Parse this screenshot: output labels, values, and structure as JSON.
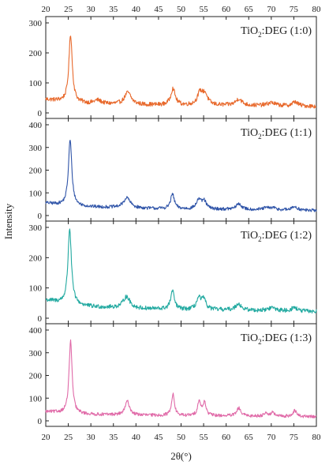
{
  "chart_data": {
    "type": "line",
    "xlabel": "2θ(°)",
    "ylabel": "Intensity",
    "xlim": [
      20,
      80
    ],
    "x_ticks": [
      20,
      25,
      30,
      35,
      40,
      45,
      50,
      55,
      60,
      65,
      70,
      75,
      80
    ],
    "grid": false,
    "layout": "four stacked panels sharing the x axis; x tick labels on top and bottom",
    "noise_amplitude_counts": 7,
    "panels": [
      {
        "label_prefix": "TiO",
        "label_subscript": "2",
        "label_suffix": ":DEG (1:0)",
        "color": "#e8692c",
        "ylim": [
          0,
          300
        ],
        "y_ticks": [
          0,
          100,
          200,
          300
        ],
        "baseline": [
          [
            20,
            45
          ],
          [
            24,
            38
          ],
          [
            30,
            30
          ],
          [
            40,
            27
          ],
          [
            50,
            25
          ],
          [
            60,
            25
          ],
          [
            70,
            24
          ],
          [
            80,
            22
          ]
        ],
        "peaks": [
          {
            "x": 25.5,
            "height": 225,
            "width": 0.45
          },
          {
            "x": 31.5,
            "height": 12,
            "width": 1.0
          },
          {
            "x": 38.2,
            "height": 40,
            "width": 0.9
          },
          {
            "x": 48.2,
            "height": 55,
            "width": 0.6
          },
          {
            "x": 54.2,
            "height": 40,
            "width": 0.7
          },
          {
            "x": 55.3,
            "height": 35,
            "width": 0.7
          },
          {
            "x": 62.8,
            "height": 22,
            "width": 0.8
          },
          {
            "x": 70.0,
            "height": 10,
            "width": 1.0
          },
          {
            "x": 75.3,
            "height": 14,
            "width": 0.7
          }
        ]
      },
      {
        "label_prefix": "TiO",
        "label_subscript": "2",
        "label_suffix": ":DEG (1:1)",
        "color": "#2f54a8",
        "ylim": [
          0,
          400
        ],
        "y_ticks": [
          0,
          100,
          200,
          300,
          400
        ],
        "baseline": [
          [
            20,
            55
          ],
          [
            24,
            45
          ],
          [
            30,
            38
          ],
          [
            40,
            32
          ],
          [
            50,
            28
          ],
          [
            60,
            27
          ],
          [
            70,
            25
          ],
          [
            80,
            22
          ]
        ],
        "peaks": [
          {
            "x": 25.4,
            "height": 290,
            "width": 0.45
          },
          {
            "x": 38.0,
            "height": 45,
            "width": 0.9
          },
          {
            "x": 48.1,
            "height": 65,
            "width": 0.5
          },
          {
            "x": 53.9,
            "height": 40,
            "width": 0.6
          },
          {
            "x": 55.1,
            "height": 35,
            "width": 0.6
          },
          {
            "x": 62.8,
            "height": 25,
            "width": 0.7
          },
          {
            "x": 68.9,
            "height": 8,
            "width": 0.8
          },
          {
            "x": 70.4,
            "height": 8,
            "width": 0.8
          },
          {
            "x": 75.2,
            "height": 16,
            "width": 0.7
          }
        ]
      },
      {
        "label_prefix": "TiO",
        "label_subscript": "2",
        "label_suffix": ":DEG (1:2)",
        "color": "#21a9a0",
        "ylim": [
          0,
          300
        ],
        "y_ticks": [
          0,
          100,
          200,
          300
        ],
        "baseline": [
          [
            20,
            60
          ],
          [
            24,
            50
          ],
          [
            30,
            38
          ],
          [
            40,
            32
          ],
          [
            50,
            28
          ],
          [
            60,
            27
          ],
          [
            70,
            25
          ],
          [
            80,
            22
          ]
        ],
        "peaks": [
          {
            "x": 25.3,
            "height": 250,
            "width": 0.45
          },
          {
            "x": 37.9,
            "height": 38,
            "width": 0.9
          },
          {
            "x": 48.1,
            "height": 60,
            "width": 0.5
          },
          {
            "x": 53.9,
            "height": 35,
            "width": 0.6
          },
          {
            "x": 55.0,
            "height": 32,
            "width": 0.6
          },
          {
            "x": 62.7,
            "height": 22,
            "width": 0.7
          },
          {
            "x": 70.2,
            "height": 10,
            "width": 0.9
          },
          {
            "x": 75.1,
            "height": 12,
            "width": 0.7
          }
        ]
      },
      {
        "label_prefix": "TiO",
        "label_subscript": "2",
        "label_suffix": ":DEG (1:3)",
        "color": "#e06aa8",
        "ylim": [
          0,
          400
        ],
        "y_ticks": [
          0,
          100,
          200,
          300,
          400
        ],
        "baseline": [
          [
            20,
            40
          ],
          [
            24,
            35
          ],
          [
            30,
            28
          ],
          [
            40,
            25
          ],
          [
            50,
            22
          ],
          [
            60,
            22
          ],
          [
            70,
            20
          ],
          [
            80,
            18
          ]
        ],
        "peaks": [
          {
            "x": 25.5,
            "height": 320,
            "width": 0.4
          },
          {
            "x": 38.1,
            "height": 60,
            "width": 0.6
          },
          {
            "x": 48.2,
            "height": 95,
            "width": 0.4
          },
          {
            "x": 54.0,
            "height": 65,
            "width": 0.4
          },
          {
            "x": 55.2,
            "height": 60,
            "width": 0.4
          },
          {
            "x": 62.8,
            "height": 35,
            "width": 0.5
          },
          {
            "x": 68.8,
            "height": 15,
            "width": 0.5
          },
          {
            "x": 70.3,
            "height": 15,
            "width": 0.5
          },
          {
            "x": 75.2,
            "height": 25,
            "width": 0.5
          }
        ]
      }
    ]
  }
}
